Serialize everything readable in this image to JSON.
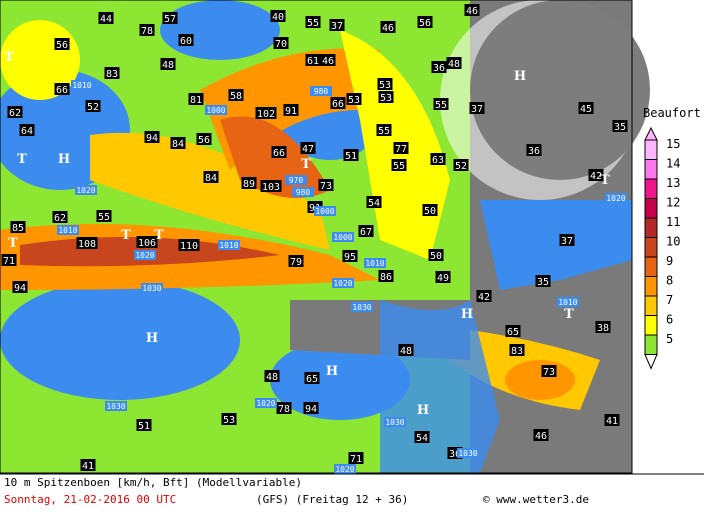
{
  "map": {
    "gusts": [
      44,
      57,
      40,
      55,
      37,
      46,
      56,
      46,
      78,
      60,
      70,
      56,
      83,
      48,
      61,
      46,
      48,
      66,
      52,
      81,
      58,
      53,
      53,
      36,
      62,
      64,
      102,
      91,
      66,
      53,
      55,
      37,
      45,
      35,
      94,
      84,
      56,
      47,
      55,
      66,
      51,
      63,
      36,
      84,
      89,
      103,
      73,
      52,
      77,
      55,
      42,
      91,
      54,
      50,
      62,
      55,
      85,
      108,
      106,
      110,
      67,
      37,
      71,
      79,
      95,
      86,
      50,
      49,
      35,
      94,
      42,
      65,
      38,
      83,
      48,
      48,
      65,
      73,
      78,
      94,
      53,
      51,
      54,
      41,
      71,
      36,
      46,
      41
    ],
    "isobars": [
      "1010",
      "1000",
      "980",
      "970",
      "980",
      "1000",
      "1000",
      "1020",
      "1010",
      "1020",
      "1010",
      "1030",
      "1020",
      "1010",
      "1030",
      "1030",
      "1020",
      "1030",
      "1020",
      "1010",
      "1020",
      "1030"
    ],
    "centers": [
      "T",
      "T",
      "H",
      "T",
      "T",
      "T",
      "H",
      "T",
      "H",
      "H",
      "T",
      "T",
      "H",
      "H"
    ]
  },
  "legend": {
    "title": "Beaufort",
    "levels": [
      {
        "value": 15,
        "color": "#ffb4ff"
      },
      {
        "value": 14,
        "color": "#ff78f0"
      },
      {
        "value": 13,
        "color": "#f0148c"
      },
      {
        "value": 12,
        "color": "#c8004b"
      },
      {
        "value": 11,
        "color": "#b42828"
      },
      {
        "value": 10,
        "color": "#c8461e"
      },
      {
        "value": 9,
        "color": "#e66414"
      },
      {
        "value": 8,
        "color": "#ff9600"
      },
      {
        "value": 7,
        "color": "#ffc800"
      },
      {
        "value": 6,
        "color": "#ffff00"
      },
      {
        "value": 5,
        "color": "#8ce632"
      }
    ]
  },
  "footer": {
    "line1": "10 m Spitzenboen [km/h, Bft] (Modellvariable)",
    "date": "Sonntag, 21-02-2016  00 UTC",
    "model": "(GFS)  (Freitag 12 + 36)",
    "credit": "© www.wetter3.de"
  }
}
